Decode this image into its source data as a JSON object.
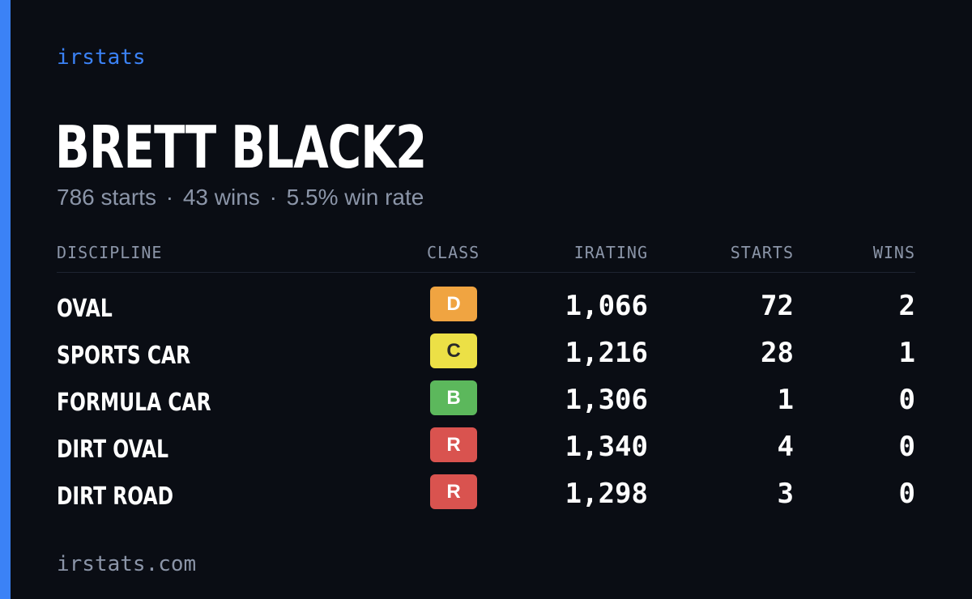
{
  "brand": "irstats",
  "driver": {
    "name": "BRETT BLACK2",
    "starts_text": "786 starts",
    "wins_text": "43 wins",
    "winrate_text": "5.5% win rate",
    "separator": "·"
  },
  "table": {
    "headers": {
      "discipline": "DISCIPLINE",
      "class": "CLASS",
      "irating": "IRATING",
      "starts": "STARTS",
      "wins": "WINS"
    },
    "rows": [
      {
        "discipline": "OVAL",
        "class": "D",
        "class_color": "#f0a441",
        "class_text_color": "#ffffff",
        "irating": "1,066",
        "starts": "72",
        "wins": "2"
      },
      {
        "discipline": "SPORTS CAR",
        "class": "C",
        "class_color": "#ece046",
        "class_text_color": "#2a2a2a",
        "irating": "1,216",
        "starts": "28",
        "wins": "1"
      },
      {
        "discipline": "FORMULA CAR",
        "class": "B",
        "class_color": "#5cb85c",
        "class_text_color": "#ffffff",
        "irating": "1,306",
        "starts": "1",
        "wins": "0"
      },
      {
        "discipline": "DIRT OVAL",
        "class": "R",
        "class_color": "#d9534f",
        "class_text_color": "#ffffff",
        "irating": "1,340",
        "starts": "4",
        "wins": "0"
      },
      {
        "discipline": "DIRT ROAD",
        "class": "R",
        "class_color": "#d9534f",
        "class_text_color": "#ffffff",
        "irating": "1,298",
        "starts": "3",
        "wins": "0"
      }
    ]
  },
  "footer": "irstats.com",
  "colors": {
    "accent": "#3b82f6",
    "background": "#0a0d14",
    "muted_text": "#8b95a8"
  }
}
